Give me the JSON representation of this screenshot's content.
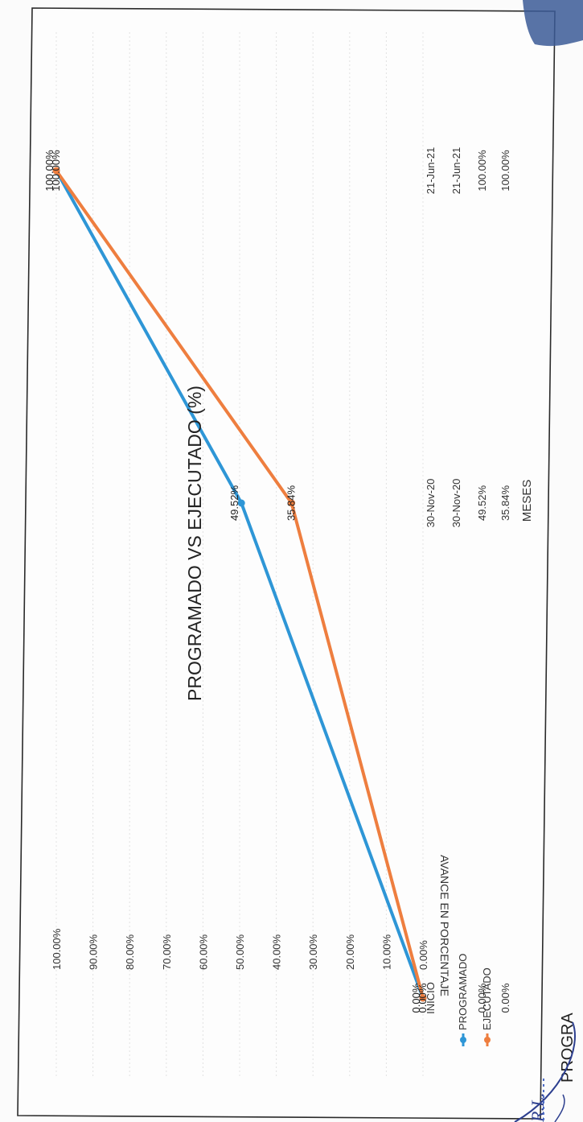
{
  "chart_data": {
    "type": "line",
    "title": "PROGRAMADO VS EJECUTADO (%)",
    "xlabel": "MESES",
    "ylabel": "AVANCE EN PORCENTAJE",
    "categories": [
      "INICIO",
      "30-Nov-20",
      "21-Jun-21"
    ],
    "yticks": [
      "0.00%",
      "10.00%",
      "20.00%",
      "30.00%",
      "40.00%",
      "50.00%",
      "60.00%",
      "70.00%",
      "80.00%",
      "90.00%",
      "100.00%"
    ],
    "ylim": [
      0,
      100
    ],
    "series": [
      {
        "name": "PROGRAMADO",
        "values": [
          0,
          49.52,
          100
        ],
        "labels": [
          "0.00%",
          "49.52%",
          "100.00%"
        ],
        "color": "#2e96d6"
      },
      {
        "name": "EJECUTADO",
        "values": [
          0,
          35.84,
          100
        ],
        "labels": [
          "0.00%",
          "35.84%",
          "100.00%"
        ],
        "color": "#ee7e3f"
      }
    ],
    "table": {
      "rows": [
        [
          "0.00%",
          "49.52%",
          "100.00%"
        ],
        [
          "0.00%",
          "35.84%",
          "100.00%"
        ]
      ]
    },
    "grid": true,
    "legend": "bottom-left",
    "orientation": "rotated-90"
  },
  "page": {
    "bottom_text": "PROGRA",
    "stamp_text": "R.L."
  }
}
